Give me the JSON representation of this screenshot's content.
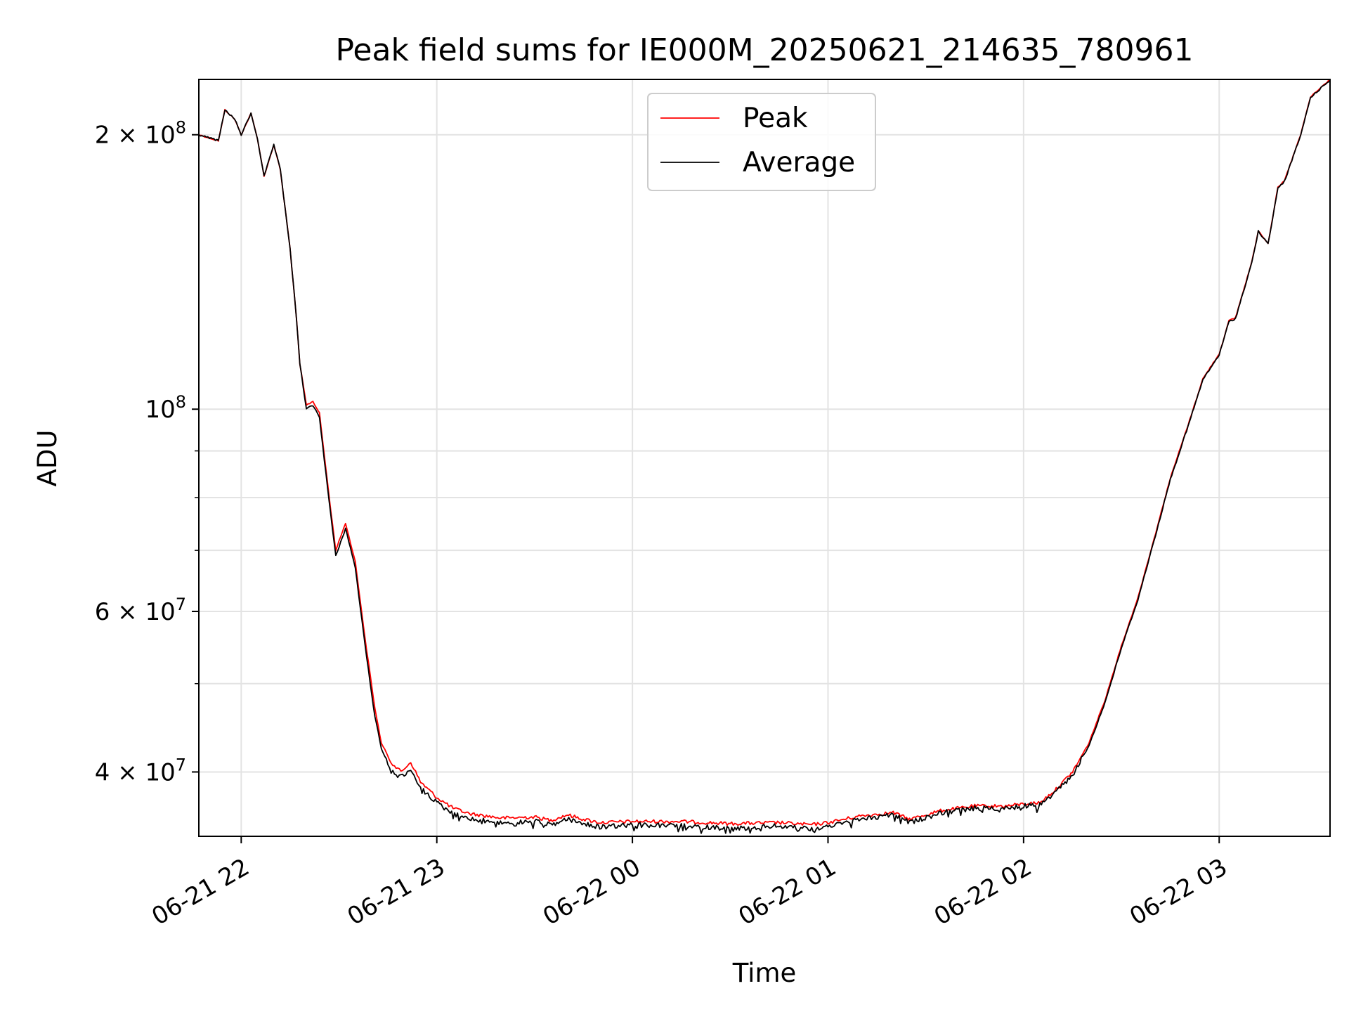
{
  "chart_data": {
    "type": "line",
    "title": "Peak field sums for IE000M_20250621_214635_780961",
    "xlabel": "Time",
    "ylabel": "ADU",
    "y_scale": "log",
    "x_range": [
      "06-21 21:47",
      "06-22 03:34"
    ],
    "ylim": [
      34000000,
      230000000
    ],
    "grid": true,
    "legend_position": "upper center",
    "x_ticks": [
      "06-21 22",
      "06-21 23",
      "06-22 00",
      "06-22 01",
      "06-22 02",
      "06-22 03"
    ],
    "x_tick_times": [
      "06-21 22:00",
      "06-21 23:00",
      "06-22 00:00",
      "06-22 01:00",
      "06-22 02:00",
      "06-22 03:00"
    ],
    "y_major_ticks": [
      {
        "value": 40000000,
        "mantissa": "4",
        "exponent": "7"
      },
      {
        "value": 60000000,
        "mantissa": "6",
        "exponent": "7"
      },
      {
        "value": 100000000,
        "mantissa": "",
        "exponent": "8"
      },
      {
        "value": 200000000,
        "mantissa": "2",
        "exponent": "8"
      }
    ],
    "y_minor_gridlines": [
      50000000,
      70000000,
      80000000,
      90000000
    ],
    "series": [
      {
        "name": "Peak",
        "color": "#ff0000",
        "points": [
          [
            "06-21 21:47",
            200000000
          ],
          [
            "06-21 21:53",
            197000000
          ],
          [
            "06-21 21:55",
            213000000
          ],
          [
            "06-21 21:58",
            208000000
          ],
          [
            "06-21 22:00",
            200000000
          ],
          [
            "06-21 22:03",
            211000000
          ],
          [
            "06-21 22:05",
            198000000
          ],
          [
            "06-21 22:07",
            180000000
          ],
          [
            "06-21 22:10",
            195000000
          ],
          [
            "06-21 22:12",
            183000000
          ],
          [
            "06-21 22:15",
            150000000
          ],
          [
            "06-21 22:17",
            125000000
          ],
          [
            "06-21 22:18",
            112000000
          ],
          [
            "06-21 22:20",
            101000000
          ],
          [
            "06-21 22:22",
            102000000
          ],
          [
            "06-21 22:24",
            99000000
          ],
          [
            "06-21 22:27",
            80000000
          ],
          [
            "06-21 22:29",
            70000000
          ],
          [
            "06-21 22:32",
            75000000
          ],
          [
            "06-21 22:35",
            68000000
          ],
          [
            "06-21 22:38",
            56000000
          ],
          [
            "06-21 22:41",
            47000000
          ],
          [
            "06-21 22:43",
            43000000
          ],
          [
            "06-21 22:46",
            41000000
          ],
          [
            "06-21 22:49",
            40000000
          ],
          [
            "06-21 22:52",
            41000000
          ],
          [
            "06-21 22:55",
            39000000
          ],
          [
            "06-21 23:00",
            37500000
          ],
          [
            "06-21 23:05",
            36500000
          ],
          [
            "06-21 23:10",
            36000000
          ],
          [
            "06-21 23:20",
            35600000
          ],
          [
            "06-21 23:30",
            35700000
          ],
          [
            "06-21 23:35",
            35400000
          ],
          [
            "06-21 23:40",
            35900000
          ],
          [
            "06-21 23:45",
            35500000
          ],
          [
            "06-21 23:50",
            35200000
          ],
          [
            "06-22 00:00",
            35300000
          ],
          [
            "06-22 00:15",
            35300000
          ],
          [
            "06-22 00:30",
            35100000
          ],
          [
            "06-22 00:45",
            35200000
          ],
          [
            "06-22 00:55",
            35000000
          ],
          [
            "06-22 01:00",
            35200000
          ],
          [
            "06-22 01:10",
            35800000
          ],
          [
            "06-22 01:20",
            36100000
          ],
          [
            "06-22 01:25",
            35500000
          ],
          [
            "06-22 01:35",
            36300000
          ],
          [
            "06-22 01:45",
            36700000
          ],
          [
            "06-22 01:55",
            36700000
          ],
          [
            "06-22 02:00",
            36900000
          ],
          [
            "06-22 02:05",
            37000000
          ],
          [
            "06-22 02:10",
            38300000
          ],
          [
            "06-22 02:15",
            40000000
          ],
          [
            "06-22 02:20",
            43000000
          ],
          [
            "06-22 02:25",
            48000000
          ],
          [
            "06-22 02:30",
            55000000
          ],
          [
            "06-22 02:35",
            62000000
          ],
          [
            "06-22 02:40",
            72000000
          ],
          [
            "06-22 02:45",
            84000000
          ],
          [
            "06-22 02:50",
            95000000
          ],
          [
            "06-22 02:55",
            108000000
          ],
          [
            "06-22 03:00",
            115000000
          ],
          [
            "06-22 03:03",
            125000000
          ],
          [
            "06-22 03:05",
            126000000
          ],
          [
            "06-22 03:10",
            145000000
          ],
          [
            "06-22 03:12",
            157000000
          ],
          [
            "06-22 03:15",
            152000000
          ],
          [
            "06-22 03:18",
            175000000
          ],
          [
            "06-22 03:20",
            178000000
          ],
          [
            "06-22 03:25",
            200000000
          ],
          [
            "06-22 03:28",
            220000000
          ],
          [
            "06-22 03:34",
            230000000
          ]
        ]
      },
      {
        "name": "Average",
        "color": "#000000",
        "points": [
          [
            "06-21 21:47",
            200000000
          ],
          [
            "06-21 21:53",
            197000000
          ],
          [
            "06-21 21:55",
            213000000
          ],
          [
            "06-21 21:58",
            208000000
          ],
          [
            "06-21 22:00",
            200000000
          ],
          [
            "06-21 22:03",
            211000000
          ],
          [
            "06-21 22:05",
            198000000
          ],
          [
            "06-21 22:07",
            180000000
          ],
          [
            "06-21 22:10",
            195000000
          ],
          [
            "06-21 22:12",
            183000000
          ],
          [
            "06-21 22:15",
            150000000
          ],
          [
            "06-21 22:17",
            125000000
          ],
          [
            "06-21 22:18",
            112000000
          ],
          [
            "06-21 22:20",
            100000000
          ],
          [
            "06-21 22:22",
            101000000
          ],
          [
            "06-21 22:24",
            98000000
          ],
          [
            "06-21 22:27",
            79000000
          ],
          [
            "06-21 22:29",
            69000000
          ],
          [
            "06-21 22:32",
            74000000
          ],
          [
            "06-21 22:35",
            67000000
          ],
          [
            "06-21 22:38",
            55000000
          ],
          [
            "06-21 22:41",
            46000000
          ],
          [
            "06-21 22:43",
            42500000
          ],
          [
            "06-21 22:46",
            40000000
          ],
          [
            "06-21 22:49",
            39500000
          ],
          [
            "06-21 22:52",
            40000000
          ],
          [
            "06-21 22:55",
            38500000
          ],
          [
            "06-21 23:00",
            37000000
          ],
          [
            "06-21 23:05",
            36000000
          ],
          [
            "06-21 23:10",
            35500000
          ],
          [
            "06-21 23:20",
            35200000
          ],
          [
            "06-21 23:30",
            35300000
          ],
          [
            "06-21 23:35",
            35000000
          ],
          [
            "06-21 23:40",
            35500000
          ],
          [
            "06-21 23:45",
            35100000
          ],
          [
            "06-21 23:50",
            34800000
          ],
          [
            "06-22 00:00",
            35000000
          ],
          [
            "06-22 00:15",
            34900000
          ],
          [
            "06-22 00:30",
            34700000
          ],
          [
            "06-22 00:45",
            34900000
          ],
          [
            "06-22 00:55",
            34600000
          ],
          [
            "06-22 01:00",
            34900000
          ],
          [
            "06-22 01:10",
            35500000
          ],
          [
            "06-22 01:20",
            35900000
          ],
          [
            "06-22 01:25",
            35200000
          ],
          [
            "06-22 01:35",
            36100000
          ],
          [
            "06-22 01:45",
            36500000
          ],
          [
            "06-22 01:55",
            36500000
          ],
          [
            "06-22 02:00",
            36700000
          ],
          [
            "06-22 02:05",
            36800000
          ],
          [
            "06-22 02:10",
            38000000
          ],
          [
            "06-22 02:15",
            39700000
          ],
          [
            "06-22 02:20",
            42700000
          ],
          [
            "06-22 02:25",
            47700000
          ],
          [
            "06-22 02:30",
            54700000
          ],
          [
            "06-22 02:35",
            61700000
          ],
          [
            "06-22 02:40",
            71700000
          ],
          [
            "06-22 02:45",
            83700000
          ],
          [
            "06-22 02:50",
            94700000
          ],
          [
            "06-22 02:55",
            107700000
          ],
          [
            "06-22 03:00",
            114700000
          ],
          [
            "06-22 03:03",
            124700000
          ],
          [
            "06-22 03:05",
            125700000
          ],
          [
            "06-22 03:10",
            144700000
          ],
          [
            "06-22 03:12",
            156700000
          ],
          [
            "06-22 03:15",
            151700000
          ],
          [
            "06-22 03:18",
            174700000
          ],
          [
            "06-22 03:20",
            177700000
          ],
          [
            "06-22 03:25",
            199700000
          ],
          [
            "06-22 03:28",
            219700000
          ],
          [
            "06-22 03:34",
            229700000
          ]
        ]
      }
    ]
  }
}
